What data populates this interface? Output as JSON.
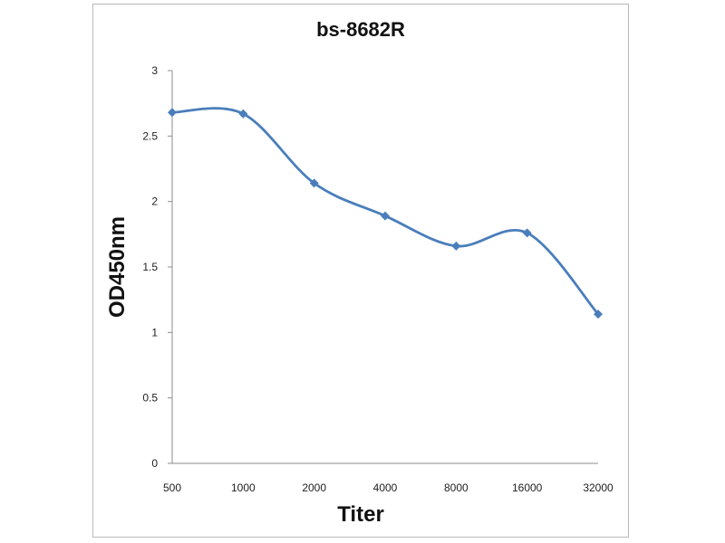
{
  "chart_data": {
    "type": "line",
    "title": "bs-8682R",
    "xlabel": "Titer",
    "ylabel": "OD450nm",
    "categories": [
      "500",
      "1000",
      "2000",
      "4000",
      "8000",
      "16000",
      "32000"
    ],
    "series": [
      {
        "values": [
          2.68,
          2.67,
          2.14,
          1.89,
          1.66,
          1.76,
          1.14
        ]
      }
    ],
    "ylim": [
      0,
      3
    ],
    "yticks": [
      "0",
      "0.5",
      "1",
      "1.5",
      "2",
      "2.5",
      "3"
    ],
    "smooth": true,
    "markers": "diamond",
    "grid": false,
    "legend": "none",
    "colors": {
      "series": "#4a7ebb",
      "axis": "#8c8c8c",
      "border": "#b8b8b8"
    }
  }
}
